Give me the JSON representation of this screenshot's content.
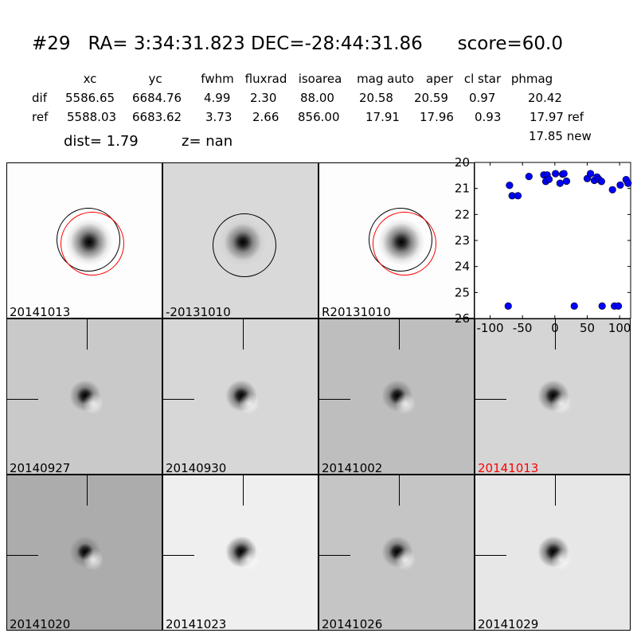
{
  "header": {
    "id": "#29",
    "coords": "RA= 3:34:31.823 DEC=-28:44:31.86",
    "score": "score=60.0"
  },
  "table": {
    "columns": [
      "xc",
      "yc",
      "fwhm",
      "fluxrad",
      "isoarea",
      "mag auto",
      "aper",
      "cl star",
      "phmag"
    ],
    "rows": [
      {
        "label": "dif",
        "values": [
          "5586.65",
          "6684.76",
          "4.99",
          "2.30",
          "88.00",
          "20.58",
          "20.59",
          "0.97",
          "20.42"
        ]
      },
      {
        "label": "ref",
        "values": [
          "5588.03",
          "6683.62",
          "3.73",
          "2.66",
          "856.00",
          "17.91",
          "17.96",
          "0.93",
          "17.97 ref"
        ]
      }
    ],
    "extra_phmag": "17.85 new",
    "dist": "dist=  1.79",
    "z": "z=   nan"
  },
  "stamps_top": [
    {
      "label": "20141013",
      "bg": "#fdfdfd"
    },
    {
      "label": "-20131010",
      "bg": "#d9d9d9"
    },
    {
      "label": "R20131010",
      "bg": "#fdfdfd"
    }
  ],
  "stamps": [
    {
      "label": "20140927",
      "bg": "#c9c9c9",
      "color": "#000000"
    },
    {
      "label": "20140930",
      "bg": "#d7d7d7",
      "color": "#000000"
    },
    {
      "label": "20141002",
      "bg": "#bebebe",
      "color": "#000000"
    },
    {
      "label": "20141013",
      "bg": "#d5d5d5",
      "color": "#ff0000"
    },
    {
      "label": "20141020",
      "bg": "#acacac",
      "color": "#000000"
    },
    {
      "label": "20141023",
      "bg": "#efefef",
      "color": "#000000"
    },
    {
      "label": "20141026",
      "bg": "#c5c5c5",
      "color": "#000000"
    },
    {
      "label": "20141029",
      "bg": "#e7e7e7",
      "color": "#000000"
    }
  ],
  "chart_data": {
    "type": "scatter",
    "xlim": [
      -124,
      117
    ],
    "ylim": [
      26,
      20
    ],
    "y_inverted": true,
    "xticks": [
      "-100",
      "-50",
      "0",
      "50",
      "100"
    ],
    "xtick_values": [
      -100,
      -50,
      0,
      50,
      100
    ],
    "yticks": [
      "20",
      "21",
      "22",
      "23",
      "24",
      "25",
      "26"
    ],
    "ytick_values": [
      20,
      21,
      22,
      23,
      24,
      25,
      26
    ],
    "marker_color": "#0000ff",
    "x": [
      -70,
      -66,
      -57,
      -40,
      -17,
      -12,
      -14,
      -9,
      1,
      12,
      14,
      8,
      18,
      50,
      55,
      61,
      65,
      68,
      72,
      89,
      101,
      110,
      113,
      -72,
      30,
      73,
      92,
      98
    ],
    "y": [
      20.88,
      21.28,
      21.28,
      20.54,
      20.48,
      20.48,
      20.73,
      20.65,
      20.43,
      20.45,
      20.43,
      20.8,
      20.72,
      20.62,
      20.43,
      20.69,
      20.56,
      20.65,
      20.73,
      21.05,
      20.87,
      20.66,
      20.8,
      25.52,
      25.52,
      25.52,
      25.52,
      25.52
    ]
  }
}
